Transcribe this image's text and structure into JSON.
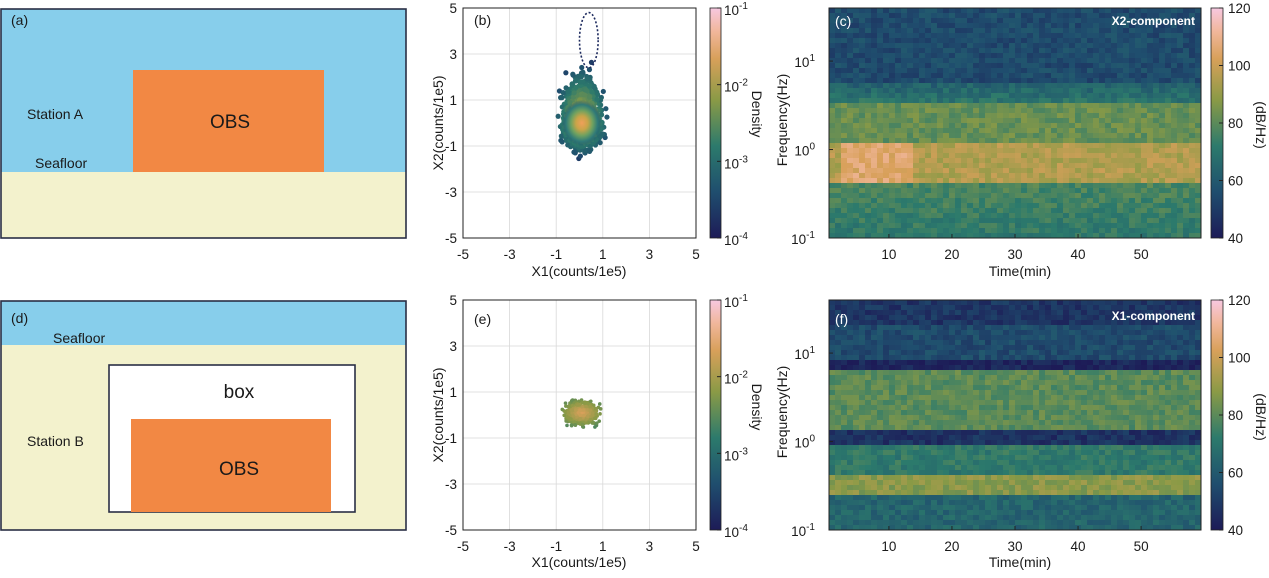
{
  "colors": {
    "water": "#87ceeb",
    "sediment": "#f3f2cd",
    "obs": "#f28844",
    "box_fill": "#ffffff",
    "frame": "#2a2f45"
  },
  "panel_a": {
    "label": "(a)",
    "station": "Station A",
    "seafloor": "Seafloor",
    "obs": "OBS"
  },
  "panel_d": {
    "label": "(d)",
    "station": "Station B",
    "seafloor": "Seafloor",
    "box": "box",
    "obs": "OBS"
  },
  "chart_data": [
    {
      "id": "b",
      "type": "scatter",
      "label": "(b)",
      "xlabel": "X1(counts/1e5)",
      "ylabel": "X2(counts/1e5)",
      "xlim": [
        -5,
        5
      ],
      "ylim": [
        -5,
        5
      ],
      "xticks": [
        "-5",
        "-3",
        "-1",
        "1",
        "3",
        "5"
      ],
      "yticks": [
        "5",
        "3",
        "1",
        "-1",
        "-3",
        "-5"
      ],
      "colorbar": {
        "label": "Density",
        "ticks": [
          "10",
          "10",
          "10",
          "10"
        ],
        "exponents": [
          "-1",
          "-2",
          "-3",
          "-4"
        ]
      },
      "cluster": {
        "center": [
          0.1,
          0
        ],
        "spread_x": 1.5,
        "spread_y_top": 3.2,
        "spread_y_bottom": 1.8
      },
      "loop": {
        "center": [
          0.4,
          3.6
        ],
        "rx": 0.4,
        "ry": 1.2
      }
    },
    {
      "id": "e",
      "type": "scatter",
      "label": "(e)",
      "xlabel": "X1(counts/1e5)",
      "ylabel": "X2(counts/1e5)",
      "xlim": [
        -5,
        5
      ],
      "ylim": [
        -5,
        5
      ],
      "xticks": [
        "-5",
        "-3",
        "-1",
        "1",
        "3",
        "5"
      ],
      "yticks": [
        "5",
        "3",
        "1",
        "-1",
        "-3",
        "-5"
      ],
      "colorbar": {
        "label": "Density",
        "ticks": [
          "10",
          "10",
          "10",
          "10"
        ],
        "exponents": [
          "-1",
          "-2",
          "-3",
          "-4"
        ]
      },
      "cluster": {
        "center": [
          0.1,
          0.1
        ],
        "spread_x": 1.3,
        "spread_y_top": 0.8,
        "spread_y_bottom": 0.8
      }
    },
    {
      "id": "c",
      "type": "heatmap",
      "label": "(c)",
      "component": "X2-component",
      "xlabel": "Time(min)",
      "ylabel": "Frequency(Hz)",
      "xlim": [
        0.5,
        59.5
      ],
      "ylim_log10": [
        -1,
        1.6
      ],
      "xticks": [
        10,
        20,
        30,
        40,
        50
      ],
      "yticks": [
        {
          "base": "10",
          "exp": "1"
        },
        {
          "base": "10",
          "exp": "0"
        },
        {
          "base": "10",
          "exp": "-1"
        }
      ],
      "colorbar": {
        "label": "(dB/Hz)",
        "ticks": [
          "120",
          "100",
          "80",
          "60",
          "40"
        ],
        "range": [
          40,
          120
        ]
      }
    },
    {
      "id": "f",
      "type": "heatmap",
      "label": "(f)",
      "component": "X1-component",
      "xlabel": "Time(min)",
      "ylabel": "Frequency(Hz)",
      "xlim": [
        0.5,
        59.5
      ],
      "ylim_log10": [
        -1,
        1.6
      ],
      "xticks": [
        10,
        20,
        30,
        40,
        50
      ],
      "yticks": [
        {
          "base": "10",
          "exp": "1"
        },
        {
          "base": "10",
          "exp": "0"
        },
        {
          "base": "10",
          "exp": "-1"
        }
      ],
      "colorbar": {
        "label": "(dB/Hz)",
        "ticks": [
          "120",
          "100",
          "80",
          "60",
          "40"
        ],
        "range": [
          40,
          120
        ]
      }
    }
  ]
}
